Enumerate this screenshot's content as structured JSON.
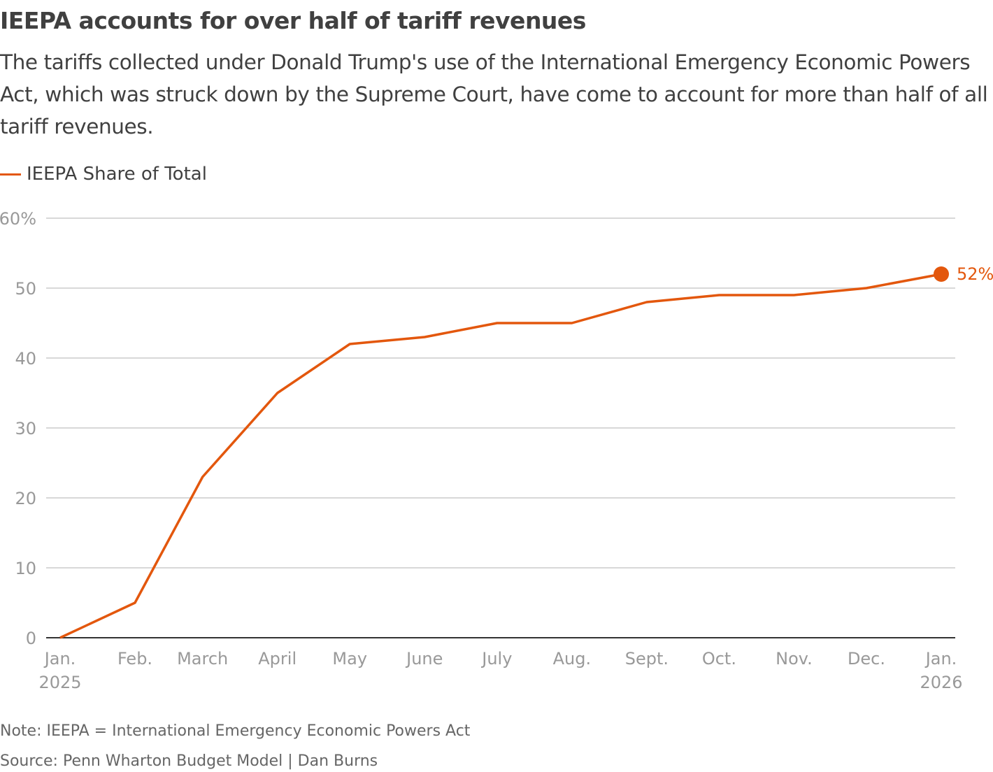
{
  "title": "IEEPA accounts for over half of tariff revenues",
  "subtitle": "The tariffs collected under Donald Trump's use of the International Emergency Economic Powers Act, which was struck down by the Supreme Court, have come to account for more than half of all tariff revenues.",
  "note": "Note: IEEPA = International Emergency Economic Powers Act",
  "source": "Source: Penn Wharton Budget Model | Dan Burns",
  "colors": {
    "series": "#e3570d",
    "grid": "#cccccc",
    "axis": "#333333",
    "tick_text": "#999999"
  },
  "chart_data": {
    "type": "line",
    "title": "IEEPA accounts for over half of tariff revenues",
    "xlabel": "",
    "ylabel": "",
    "ylim": [
      0,
      60
    ],
    "yticks": [
      0,
      10,
      20,
      30,
      40,
      50,
      60
    ],
    "ytick_labels": [
      "0",
      "10",
      "20",
      "30",
      "40",
      "50",
      "60%"
    ],
    "xticks": [
      "2025-01-01",
      "2025-02-01",
      "2025-03-01",
      "2025-04-01",
      "2025-05-01",
      "2025-06-01",
      "2025-07-01",
      "2025-08-01",
      "2025-09-01",
      "2025-10-01",
      "2025-11-01",
      "2025-12-01",
      "2026-01-01"
    ],
    "xtick_labels": [
      [
        "Jan.",
        "2025"
      ],
      [
        "Feb."
      ],
      [
        "March"
      ],
      [
        "April"
      ],
      [
        "May"
      ],
      [
        "June"
      ],
      [
        "July"
      ],
      [
        "Aug."
      ],
      [
        "Sept."
      ],
      [
        "Oct."
      ],
      [
        "Nov."
      ],
      [
        "Dec."
      ],
      [
        "Jan.",
        "2026"
      ]
    ],
    "grid": true,
    "legend": "top-left",
    "series": [
      {
        "name": "IEEPA Share of Total",
        "x": [
          "2025-01-01",
          "2025-02-01",
          "2025-03-01",
          "2025-04-01",
          "2025-05-01",
          "2025-06-01",
          "2025-07-01",
          "2025-08-01",
          "2025-09-01",
          "2025-10-01",
          "2025-11-01",
          "2025-12-01",
          "2026-01-01"
        ],
        "values": [
          0,
          5,
          23,
          35,
          42,
          43,
          45,
          45,
          48,
          49,
          49,
          50,
          52
        ],
        "end_label": "52%"
      }
    ]
  }
}
